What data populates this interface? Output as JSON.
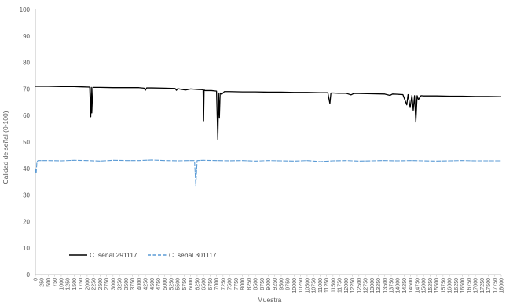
{
  "chart_data": {
    "type": "line",
    "title": "",
    "xlabel": "Muestra",
    "ylabel": "Calidad de señal (0-100)",
    "xlim": [
      0,
      18000
    ],
    "ylim": [
      0,
      100
    ],
    "y_ticks": [
      0,
      10,
      20,
      30,
      40,
      50,
      60,
      70,
      80,
      90,
      100
    ],
    "x_tick_step": 250,
    "grid": false,
    "legend_placement": "bottom-left",
    "series": [
      {
        "name": "C. señal 291117",
        "color": "#000000",
        "dash": "solid",
        "x": [
          0,
          500,
          1000,
          1500,
          1800,
          2100,
          2140,
          2160,
          2180,
          2220,
          2500,
          3000,
          3500,
          4000,
          4200,
          4250,
          4300,
          4500,
          5000,
          5400,
          5450,
          5500,
          5800,
          6000,
          6300,
          6480,
          6500,
          6520,
          6560,
          6800,
          7000,
          7050,
          7080,
          7110,
          7140,
          7200,
          7300,
          7500,
          8000,
          8500,
          9000,
          9500,
          10000,
          10500,
          11000,
          11300,
          11380,
          11420,
          11500,
          11700,
          12000,
          12200,
          12300,
          12500,
          13000,
          13500,
          13700,
          13800,
          14000,
          14200,
          14350,
          14400,
          14480,
          14550,
          14600,
          14650,
          14700,
          14750,
          14800,
          14900,
          15000,
          15500,
          16000,
          16500,
          17000,
          17500,
          18000
        ],
        "y": [
          71,
          71,
          70.9,
          70.9,
          70.8,
          70.7,
          59.5,
          70.6,
          61.0,
          70.6,
          70.6,
          70.5,
          70.5,
          70.5,
          70.3,
          69.5,
          70.4,
          70.4,
          70.3,
          70.2,
          69.5,
          70.1,
          69.6,
          70.0,
          69.8,
          69.7,
          58.0,
          69.6,
          69.4,
          69.4,
          69.2,
          51.0,
          68.5,
          59.0,
          68.5,
          68.0,
          69.0,
          69.0,
          68.9,
          68.9,
          68.8,
          68.8,
          68.7,
          68.7,
          68.6,
          68.6,
          64.5,
          68.5,
          68.5,
          68.4,
          68.4,
          67.8,
          68.3,
          68.3,
          68.2,
          68.1,
          67.6,
          68.1,
          68.0,
          67.9,
          64.0,
          67.9,
          63.0,
          67.6,
          62.0,
          67.5,
          57.5,
          67.5,
          66.0,
          67.5,
          67.4,
          67.4,
          67.3,
          67.3,
          67.2,
          67.2,
          67.1
        ]
      },
      {
        "name": "C. señal 301117",
        "color": "#5b9bd5",
        "dash": "dashed",
        "x": [
          0,
          30,
          60,
          100,
          150,
          500,
          1000,
          1500,
          2000,
          2500,
          3000,
          3500,
          4000,
          4500,
          5000,
          5500,
          6000,
          6150,
          6200,
          6250,
          6500,
          7000,
          7500,
          8000,
          8500,
          9000,
          9500,
          10000,
          10500,
          11000,
          11500,
          12000,
          12500,
          13000,
          13500,
          14000,
          14500,
          15000,
          15500,
          16000,
          16500,
          17000,
          17500,
          18000
        ],
        "y": [
          40,
          38,
          42.5,
          43,
          43,
          43,
          42.9,
          43.1,
          43,
          42.8,
          43.1,
          43,
          43,
          43.2,
          43,
          42.9,
          43,
          43,
          33.5,
          43,
          43.1,
          43,
          42.9,
          43,
          42.8,
          43,
          42.9,
          42.8,
          43,
          42.6,
          42.9,
          43,
          42.8,
          42.9,
          43,
          42.9,
          43,
          42.9,
          42.8,
          42.9,
          43,
          42.9,
          42.9,
          42.9
        ]
      }
    ]
  }
}
